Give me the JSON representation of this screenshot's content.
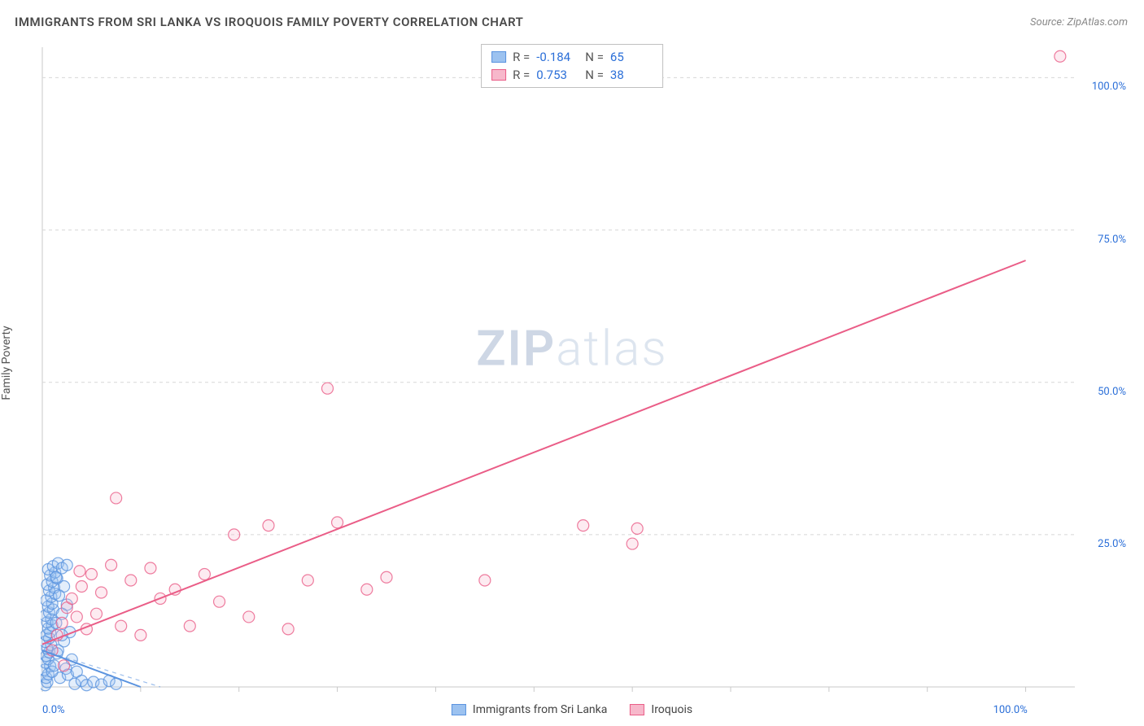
{
  "title": "IMMIGRANTS FROM SRI LANKA VS IROQUOIS FAMILY POVERTY CORRELATION CHART",
  "source_prefix": "Source: ",
  "source_name": "ZipAtlas.com",
  "y_axis_label": "Family Poverty",
  "watermark_bold": "ZIP",
  "watermark_light": "atlas",
  "chart": {
    "type": "scatter-with-regression",
    "xlim": [
      0,
      105
    ],
    "ylim": [
      0,
      105
    ],
    "x_ticks": [
      0,
      100
    ],
    "x_tick_labels": [
      "0.0%",
      "100.0%"
    ],
    "y_ticks": [
      25,
      50,
      75,
      100
    ],
    "y_tick_labels": [
      "25.0%",
      "50.0%",
      "75.0%",
      "100.0%"
    ],
    "grid_color": "#d7d7d7",
    "background_color": "#ffffff",
    "axis_color": "#c9c9c9",
    "tick_label_color": "#2b6fd8",
    "marker_radius": 7,
    "marker_fill_opacity": 0.28,
    "marker_stroke_width": 1.2,
    "line_width": 2
  },
  "series": [
    {
      "id": "srilanka",
      "label": "Immigrants from Sri Lanka",
      "color": "#5a93df",
      "fill": "#9cc2f0",
      "stats": {
        "R": "-0.184",
        "N": "65"
      },
      "regression": {
        "x1": 0,
        "y1": 6,
        "x2": 10,
        "y2": 0
      },
      "dashed_extension": {
        "x1": 0,
        "y1": 6,
        "x2": 12,
        "y2": -1
      },
      "points": [
        [
          0.3,
          0.3
        ],
        [
          0.5,
          0.8
        ],
        [
          0.4,
          1.5
        ],
        [
          0.6,
          2.1
        ],
        [
          0.2,
          2.8
        ],
        [
          0.8,
          3.4
        ],
        [
          0.3,
          4.0
        ],
        [
          0.6,
          4.6
        ],
        [
          0.4,
          5.1
        ],
        [
          0.7,
          5.7
        ],
        [
          0.5,
          6.3
        ],
        [
          0.9,
          6.9
        ],
        [
          0.3,
          7.4
        ],
        [
          0.7,
          8.0
        ],
        [
          0.4,
          8.5
        ],
        [
          0.8,
          9.0
        ],
        [
          0.6,
          9.6
        ],
        [
          1.0,
          10.1
        ],
        [
          0.5,
          10.6
        ],
        [
          0.9,
          11.1
        ],
        [
          0.3,
          11.7
        ],
        [
          0.7,
          12.2
        ],
        [
          1.1,
          12.7
        ],
        [
          0.6,
          13.2
        ],
        [
          1.0,
          13.7
        ],
        [
          0.4,
          14.2
        ],
        [
          0.9,
          14.8
        ],
        [
          1.3,
          15.3
        ],
        [
          0.7,
          15.8
        ],
        [
          1.2,
          16.3
        ],
        [
          0.5,
          16.8
        ],
        [
          1.0,
          17.3
        ],
        [
          1.5,
          17.8
        ],
        [
          0.8,
          18.3
        ],
        [
          1.3,
          18.8
        ],
        [
          0.6,
          19.3
        ],
        [
          1.1,
          19.8
        ],
        [
          1.6,
          20.3
        ],
        [
          2.0,
          19.5
        ],
        [
          1.4,
          18.0
        ],
        [
          2.2,
          16.5
        ],
        [
          1.7,
          15.0
        ],
        [
          2.5,
          13.5
        ],
        [
          2.0,
          12.0
        ],
        [
          1.4,
          10.5
        ],
        [
          2.8,
          9.0
        ],
        [
          2.2,
          7.5
        ],
        [
          1.6,
          6.0
        ],
        [
          3.0,
          4.5
        ],
        [
          2.4,
          3.0
        ],
        [
          1.8,
          1.5
        ],
        [
          3.3,
          0.5
        ],
        [
          2.6,
          2.0
        ],
        [
          3.5,
          2.5
        ],
        [
          4.0,
          1.0
        ],
        [
          4.5,
          0.3
        ],
        [
          5.2,
          0.8
        ],
        [
          6.0,
          0.4
        ],
        [
          6.8,
          1.0
        ],
        [
          7.5,
          0.5
        ],
        [
          2.5,
          20.0
        ],
        [
          1.0,
          2.5
        ],
        [
          1.5,
          5.5
        ],
        [
          2.0,
          8.5
        ],
        [
          1.2,
          3.5
        ]
      ]
    },
    {
      "id": "iroquois",
      "label": "Iroquois",
      "color": "#ea5d87",
      "fill": "#f7b8cb",
      "stats": {
        "R": "0.753",
        "N": "38"
      },
      "regression": {
        "x1": 0,
        "y1": 7,
        "x2": 100,
        "y2": 70
      },
      "points": [
        [
          1.0,
          6.0
        ],
        [
          1.5,
          8.5
        ],
        [
          2.0,
          10.5
        ],
        [
          2.5,
          13.0
        ],
        [
          3.0,
          14.5
        ],
        [
          3.5,
          11.5
        ],
        [
          4.0,
          16.5
        ],
        [
          4.5,
          9.5
        ],
        [
          5.0,
          18.5
        ],
        [
          5.5,
          12.0
        ],
        [
          6.0,
          15.5
        ],
        [
          3.8,
          19.0
        ],
        [
          7.0,
          20.0
        ],
        [
          8.0,
          10.0
        ],
        [
          9.0,
          17.5
        ],
        [
          10.0,
          8.5
        ],
        [
          11.0,
          19.5
        ],
        [
          12.0,
          14.5
        ],
        [
          13.5,
          16.0
        ],
        [
          15.0,
          10.0
        ],
        [
          16.5,
          18.5
        ],
        [
          18.0,
          14.0
        ],
        [
          19.5,
          25.0
        ],
        [
          21.0,
          11.5
        ],
        [
          23.0,
          26.5
        ],
        [
          25.0,
          9.5
        ],
        [
          27.0,
          17.5
        ],
        [
          7.5,
          31.0
        ],
        [
          30.0,
          27.0
        ],
        [
          33.0,
          16.0
        ],
        [
          35.0,
          18.0
        ],
        [
          29.0,
          49.0
        ],
        [
          45.0,
          17.5
        ],
        [
          55.0,
          26.5
        ],
        [
          60.0,
          23.5
        ],
        [
          60.5,
          26.0
        ],
        [
          103.5,
          103.5
        ],
        [
          2.2,
          3.5
        ]
      ]
    }
  ],
  "stats_box": {
    "r_label": "R =",
    "n_label": "N ="
  },
  "legend_items": [
    {
      "ref": "srilanka"
    },
    {
      "ref": "iroquois"
    }
  ]
}
